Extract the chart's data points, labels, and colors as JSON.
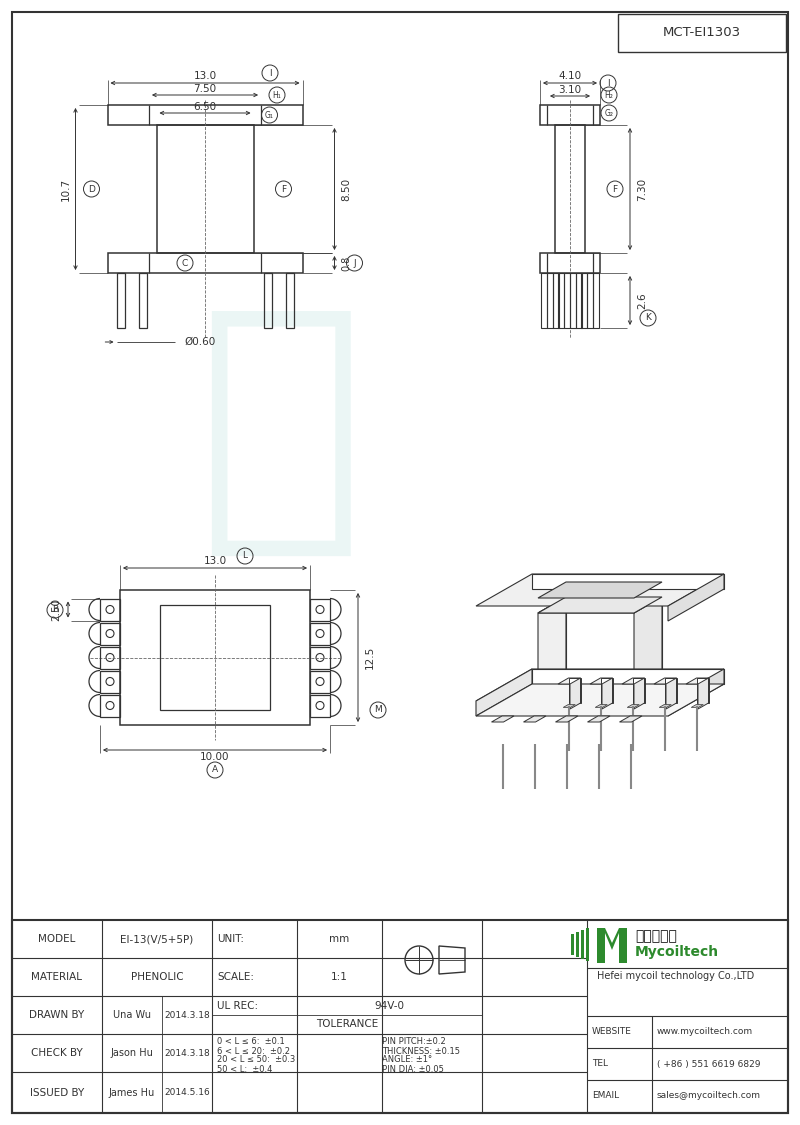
{
  "title": "MCT-EI1303",
  "bg_color": "#ffffff",
  "line_color": "#333333",
  "dim_color": "#333333",
  "watermark_color": "#b2dfdb",
  "model": "EI-13(V/5+5P)",
  "material": "PHENOLIC",
  "drawn_by": "Una Wu",
  "drawn_date": "2014.3.18",
  "check_by": "Jason Hu",
  "check_date": "2014.3.18",
  "issued_by": "James Hu",
  "issued_date": "2014.5.16",
  "unit": "mm",
  "scale": "1:1",
  "ul_rec": "94V-0",
  "tolerance_lines": [
    "0 < L ≤ 6:  ±0.1",
    "6 < L ≤ 20:  ±0.2",
    "20 < L ≤ 50:  ±0.3",
    "50 < L:  ±0.4"
  ],
  "pin_specs": [
    "PIN PITCH:±0.2",
    "THICKNESS: ±0.15",
    "ANGLE: ±1°",
    "PIN DIA: ±0.05"
  ],
  "website": "www.mycoiltech.com",
  "tel": "( +86 ) 551 6619 6829",
  "email": "sales@mycoiltech.com",
  "company_cn": "麦可一科技",
  "company_en": "Mycoiltech",
  "company_full": "Hefei mycoil technology Co.,LTD"
}
